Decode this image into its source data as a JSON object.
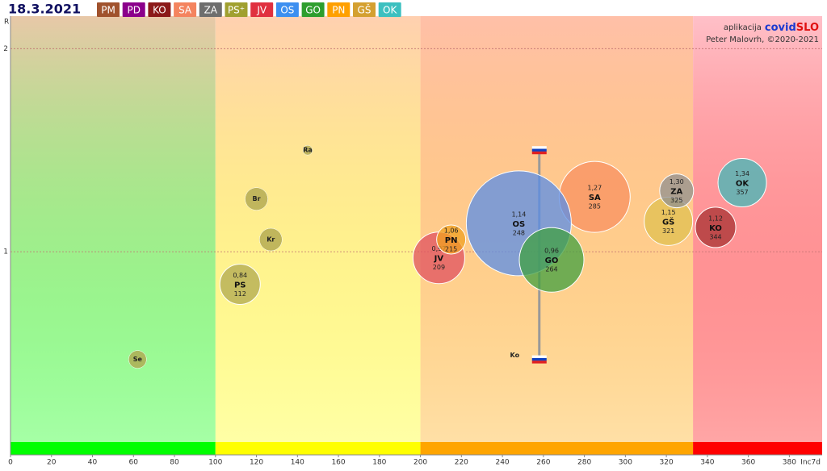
{
  "chart_data": {
    "type": "bubble",
    "title": "18.3.2021",
    "credit_app": "aplikacija",
    "credit_brand_a": "covid",
    "credit_brand_b": "SLO",
    "credit_author": "Peter Malovrh, ©2020-2021",
    "x_label": "Inc7d",
    "y_label": "R",
    "xlim": [
      0,
      396
    ],
    "ylim": [
      0,
      2.16
    ],
    "xticks": [
      0,
      20,
      40,
      60,
      80,
      100,
      120,
      140,
      160,
      180,
      200,
      220,
      240,
      260,
      280,
      300,
      320,
      340,
      360,
      380
    ],
    "yticks": [
      1,
      2
    ],
    "grid": true,
    "legend": [
      {
        "name": "PM",
        "color": "#a0522d"
      },
      {
        "name": "PD",
        "color": "#8b008b"
      },
      {
        "name": "KO",
        "color": "#8b1a1a"
      },
      {
        "name": "SA",
        "color": "#f4845f"
      },
      {
        "name": "ZA",
        "color": "#6e6e6e"
      },
      {
        "name": "PS⁺",
        "color": "#a0a030"
      },
      {
        "name": "JV",
        "color": "#e0303f"
      },
      {
        "name": "OS",
        "color": "#3d8ff0"
      },
      {
        "name": "GO",
        "color": "#2e9e2e"
      },
      {
        "name": "PN",
        "color": "#ffa000"
      },
      {
        "name": "GŠ",
        "color": "#d4a030"
      },
      {
        "name": "OK",
        "color": "#3cc0c0"
      }
    ],
    "zones": [
      {
        "from": 0,
        "to": 100,
        "color": "#00ff00",
        "top": "#e8c8a8"
      },
      {
        "from": 100,
        "to": 200,
        "color": "#ffff00",
        "top": "#ffd0b0"
      },
      {
        "from": 200,
        "to": 333,
        "color": "#ffa500",
        "top": "#ffc0a8"
      },
      {
        "from": 333,
        "to": 396,
        "color": "#ff0000",
        "top": "#ffc0c8"
      }
    ],
    "points": [
      {
        "name": "OK",
        "color": "#40b8b8",
        "x": 357,
        "y": 1.34,
        "y_label": "1,34",
        "size": 30
      },
      {
        "name": "KO",
        "color": "#a83232",
        "x": 344,
        "y": 1.12,
        "y_label": "1,12",
        "size": 25
      },
      {
        "name": "GŠ",
        "color": "#e0c050",
        "x": 321,
        "y": 1.15,
        "y_label": "1,15",
        "size": 30
      },
      {
        "name": "ZA",
        "color": "#909090",
        "x": 325,
        "y": 1.3,
        "y_label": "1,30",
        "size": 21
      },
      {
        "name": "SA",
        "color": "#f89060",
        "x": 285,
        "y": 1.27,
        "y_label": "1,27",
        "size": 44
      },
      {
        "name": "OS",
        "color": "#5a8ee8",
        "x": 248,
        "y": 1.14,
        "y_label": "1,14",
        "size": 65
      },
      {
        "name": "GO",
        "color": "#40a040",
        "x": 264,
        "y": 0.96,
        "y_label": "0,96",
        "size": 40
      },
      {
        "name": "JV",
        "color": "#e05060",
        "x": 209,
        "y": 0.97,
        "y_label": "0,97",
        "size": 32
      },
      {
        "name": "PN",
        "color": "#f0a020",
        "x": 215,
        "y": 1.06,
        "y_label": "1,06",
        "size": 18
      },
      {
        "name": "PS",
        "color": "#b0a850",
        "x": 112,
        "y": 0.84,
        "y_label": "0,84",
        "size": 25
      }
    ],
    "places": [
      {
        "label": "Br",
        "x": 120,
        "y": 1.26,
        "size": 14
      },
      {
        "label": "Kr",
        "x": 127,
        "y": 1.06,
        "size": 14
      },
      {
        "label": "Ra",
        "x": 145,
        "y": 1.5,
        "size": 6
      },
      {
        "label": "Se",
        "x": 62,
        "y": 0.47,
        "size": 11
      },
      {
        "label": "Ko",
        "x": 246,
        "y": 0.49
      }
    ],
    "country_range": {
      "x": 258,
      "low": 0.47,
      "high": 1.5
    }
  }
}
